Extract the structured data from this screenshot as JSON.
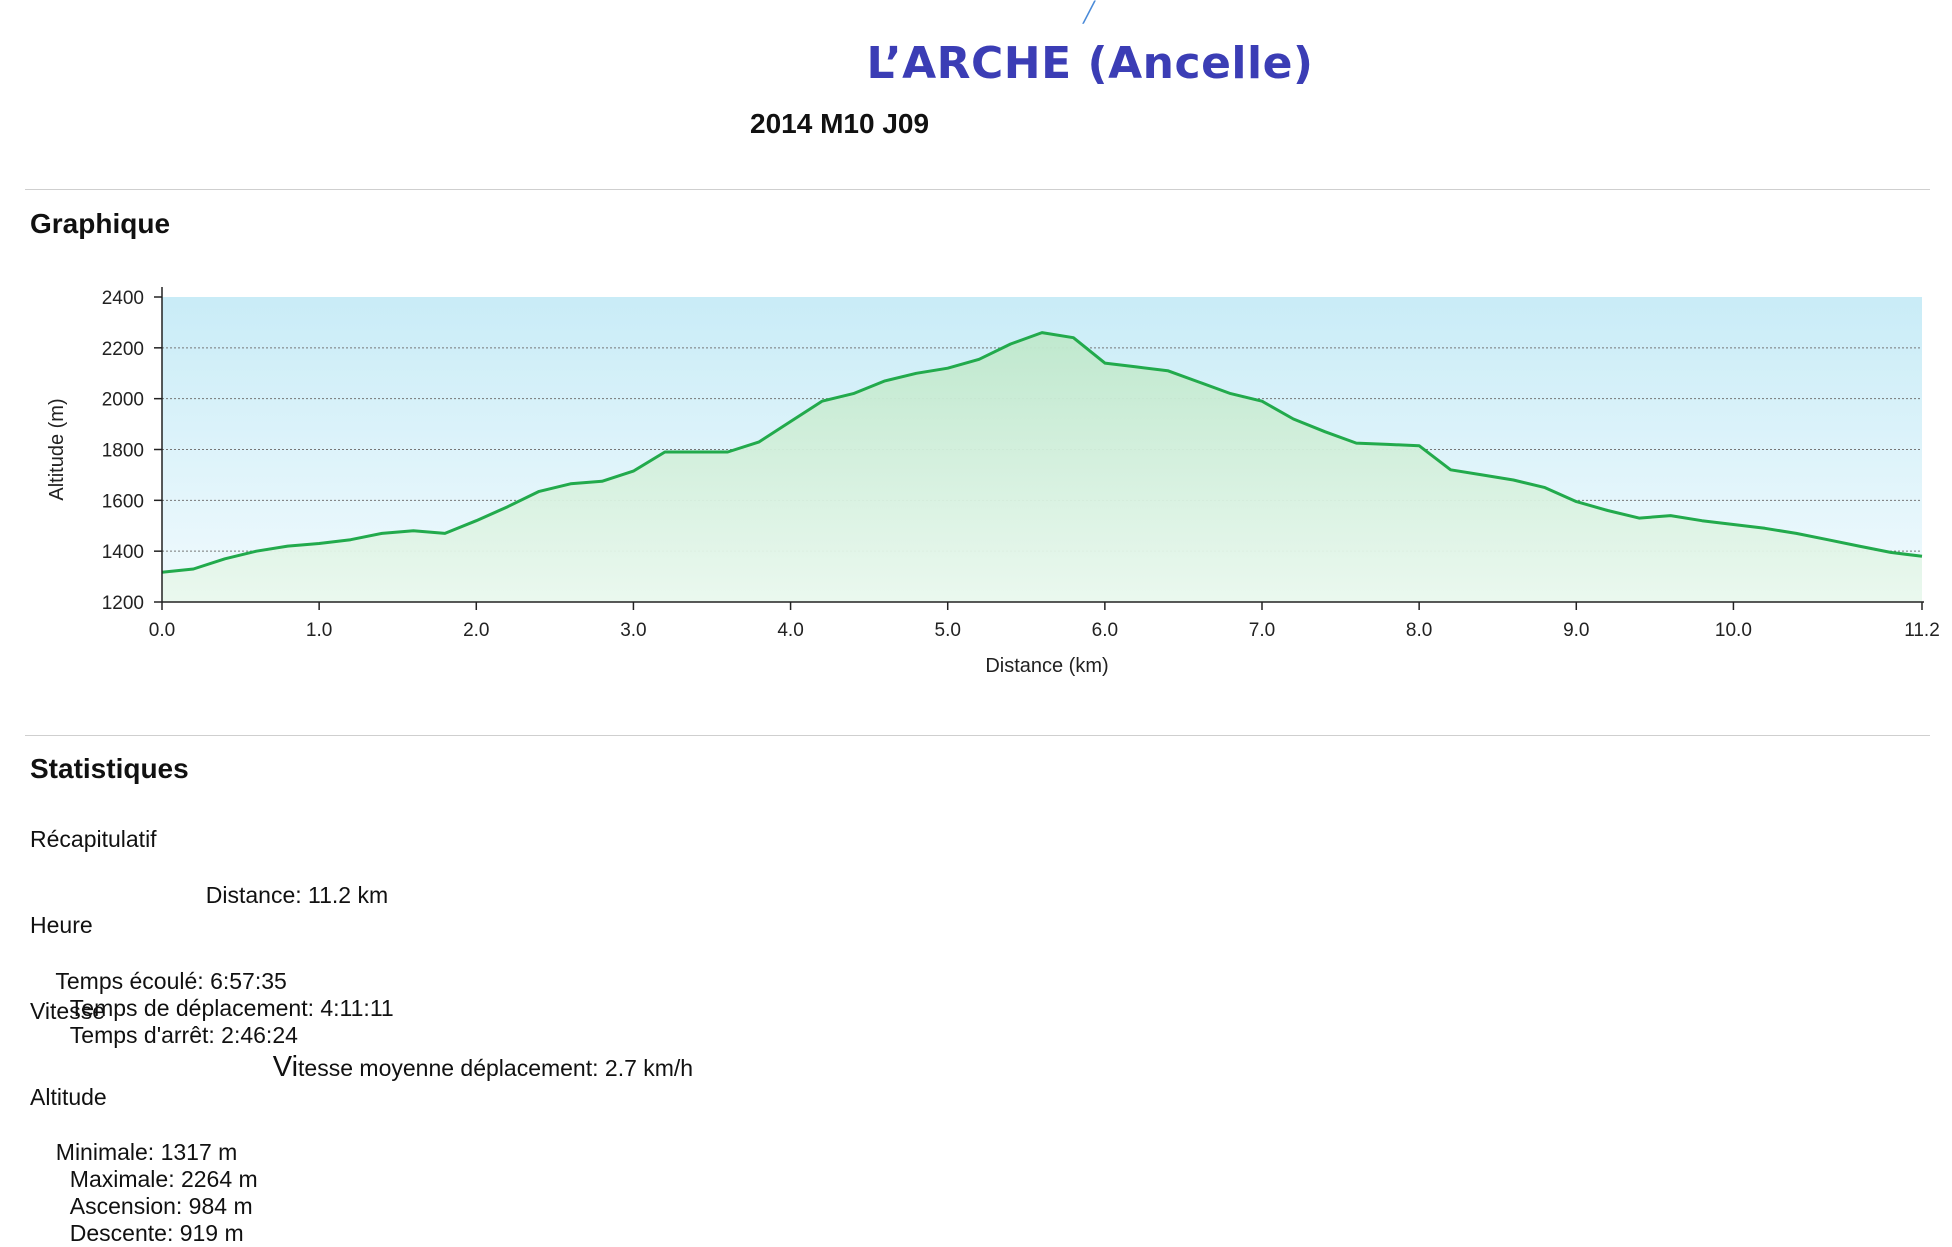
{
  "header": {
    "title": "L’ARCHE (Ancelle)",
    "subtitle": "2014 M10 J09"
  },
  "graph_section": {
    "heading": "Graphique"
  },
  "chart_data": {
    "type": "area",
    "title": "",
    "xlabel": "Distance (km)",
    "ylabel": "Altitude (m)",
    "xlim": [
      0,
      11.2
    ],
    "ylim": [
      1200,
      2400
    ],
    "x_ticks": [
      "0.0",
      "1.0",
      "2.0",
      "3.0",
      "4.0",
      "5.0",
      "6.0",
      "7.0",
      "8.0",
      "9.0",
      "10.0",
      "11.2"
    ],
    "y_ticks": [
      "2400",
      "2200",
      "2000",
      "1800",
      "1600",
      "1400",
      "1200"
    ],
    "grid": true,
    "line_color": "#22aa4c",
    "x": [
      0.0,
      0.2,
      0.4,
      0.6,
      0.8,
      1.0,
      1.2,
      1.4,
      1.6,
      1.8,
      2.0,
      2.2,
      2.4,
      2.6,
      2.8,
      3.0,
      3.2,
      3.4,
      3.6,
      3.8,
      4.0,
      4.2,
      4.4,
      4.6,
      4.8,
      5.0,
      5.2,
      5.4,
      5.6,
      5.8,
      6.0,
      6.2,
      6.4,
      6.6,
      6.8,
      7.0,
      7.2,
      7.4,
      7.6,
      7.8,
      8.0,
      8.2,
      8.4,
      8.6,
      8.8,
      9.0,
      9.2,
      9.4,
      9.6,
      9.8,
      10.0,
      10.2,
      10.4,
      10.6,
      10.8,
      11.0,
      11.2
    ],
    "series": [
      {
        "values": [
          1317,
          1330,
          1370,
          1400,
          1420,
          1430,
          1445,
          1470,
          1480,
          1470,
          1520,
          1575,
          1635,
          1665,
          1675,
          1715,
          1790,
          1790,
          1790,
          1830,
          1910,
          1990,
          2020,
          2070,
          2100,
          2120,
          2155,
          2215,
          2260,
          2240,
          2140,
          2125,
          2110,
          2065,
          2020,
          1990,
          1920,
          1870,
          1825,
          1820,
          1815,
          1720,
          1700,
          1680,
          1650,
          1595,
          1560,
          1530,
          1540,
          1520,
          1505,
          1490,
          1470,
          1445,
          1420,
          1395,
          1380
        ]
      }
    ]
  },
  "stats_section": {
    "heading": "Statistiques",
    "recap": {
      "label": "Récapitulatif",
      "distance": "Distance: 11.2 km"
    },
    "time": {
      "label": "Heure",
      "elapsed": "Temps écoulé: 6:57:35",
      "moving": "Temps de déplacement: 4:11:11",
      "stopped": "Temps d'arrêt: 2:46:24"
    },
    "speed": {
      "label": "Vitesse",
      "avg_moving": "tesse moyenne déplacement: 2.7 km/h",
      "avg_prefix": "Vi"
    },
    "altitude": {
      "label": "Altitude",
      "min": "Minimale: 1317 m",
      "max": "Maximale: 2264 m",
      "ascent": "Ascension: 984 m",
      "descent": "Descente: 919 m"
    }
  }
}
